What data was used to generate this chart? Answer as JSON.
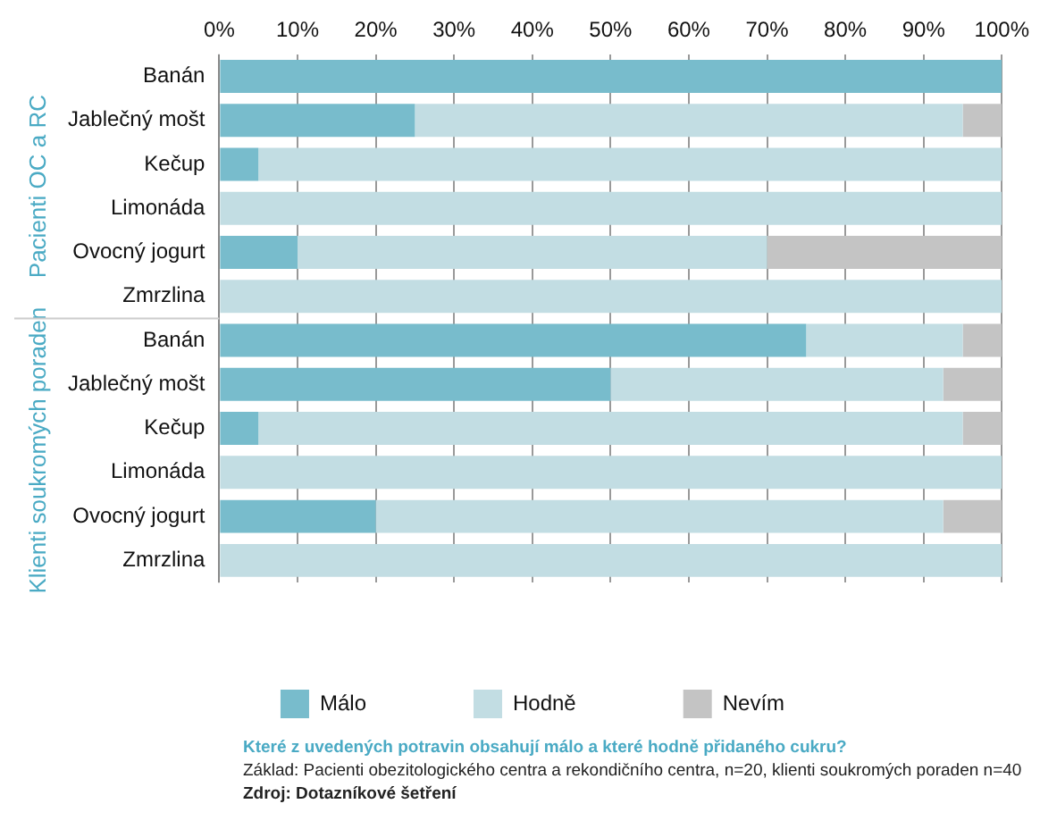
{
  "chart_data": {
    "type": "bar",
    "orientation": "horizontal",
    "stacked": true,
    "categories": [
      "Banán",
      "Jablečný mošt",
      "Kečup",
      "Limonáda",
      "Ovocný jogurt",
      "Zmrzlina",
      "Banán",
      "Jablečný mošt",
      "Kečup",
      "Limonáda",
      "Ovocný jogurt",
      "Zmrzlina"
    ],
    "series": [
      {
        "name": "Málo",
        "color": "#78bccc",
        "values": [
          100,
          25,
          5,
          0,
          10,
          0,
          75,
          50,
          5,
          0,
          20,
          0
        ]
      },
      {
        "name": "Hodně",
        "color": "#c2dde3",
        "values": [
          0,
          70,
          95,
          100,
          60,
          100,
          20,
          42.5,
          90,
          100,
          72.5,
          100
        ]
      },
      {
        "name": "Nevím",
        "color": "#c4c4c4",
        "values": [
          0,
          5,
          0,
          0,
          30,
          0,
          5,
          7.5,
          5,
          0,
          7.5,
          0
        ]
      }
    ],
    "xlim": [
      0,
      100
    ],
    "xticks": [
      {
        "value": 0,
        "label": "0%"
      },
      {
        "value": 10,
        "label": "10%"
      },
      {
        "value": 20,
        "label": "20%"
      },
      {
        "value": 30,
        "label": "30%"
      },
      {
        "value": 40,
        "label": "40%"
      },
      {
        "value": 50,
        "label": "50%"
      },
      {
        "value": 60,
        "label": "60%"
      },
      {
        "value": 70,
        "label": "70%"
      },
      {
        "value": 80,
        "label": "80%"
      },
      {
        "value": 90,
        "label": "90%"
      },
      {
        "value": 100,
        "label": "100%"
      }
    ],
    "grid": "x",
    "legend": "bottom",
    "annotations": [
      "Pacienti OC a RC",
      "Klienti soukromých poraden",
      "Které z uvedených potravin obsahují málo a které hodně přidaného cukru?",
      "Základ: Pacienti obezitologického centra a rekondičního centra, n=20, klienti soukromých poraden n=40",
      "Zdroj: Dotazníkové šetření"
    ]
  }
}
